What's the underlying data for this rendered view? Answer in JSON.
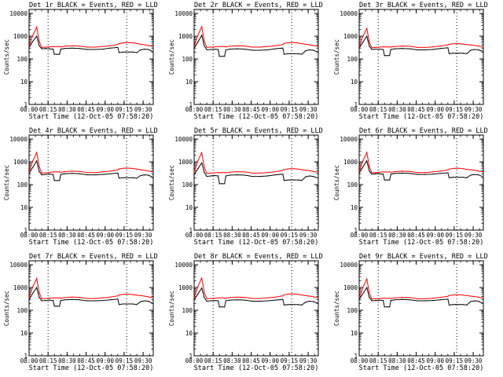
{
  "figure": {
    "xlabel": "Start Time (12-Oct-05 07:58:20)",
    "ylabel": "Counts/sec",
    "x_tick_labels": [
      "08:00",
      "08:15",
      "08:30",
      "08:45",
      "09:00",
      "09:15",
      "09:30"
    ],
    "y_tick_labels": [
      "1",
      "10",
      "100",
      "1000",
      "10000"
    ],
    "colors": {
      "events": "#000000",
      "lld": "#ff0000"
    }
  },
  "chart_data": [
    {
      "type": "line",
      "title": "Det 1r BLACK = Events, RED = LLD",
      "xlabel": "Start Time (12-Oct-05 07:58:20)",
      "ylabel": "Counts/sec",
      "xlim": [
        "08:00",
        "09:38"
      ],
      "ylim": [
        1,
        15000
      ],
      "y_scale": "log",
      "x": [
        "08:00",
        "08:03",
        "08:06",
        "08:08",
        "08:10",
        "08:13",
        "08:16",
        "08:19",
        "08:20",
        "08:22",
        "08:24",
        "08:25",
        "08:28",
        "08:34",
        "08:40",
        "08:46",
        "08:52",
        "08:58",
        "09:04",
        "09:10",
        "09:11",
        "09:14",
        "09:16",
        "09:19",
        "09:22",
        "09:25",
        "09:28",
        "09:31",
        "09:34",
        "09:37"
      ],
      "series": [
        {
          "name": "BLACK = Events",
          "values": [
            320,
            600,
            1000,
            380,
            280,
            290,
            280,
            270,
            160,
            160,
            160,
            270,
            290,
            300,
            290,
            260,
            260,
            270,
            300,
            320,
            190,
            200,
            200,
            200,
            200,
            190,
            250,
            270,
            260,
            220
          ]
        },
        {
          "name": "RED = LLD",
          "values": [
            360,
            1100,
            2500,
            600,
            320,
            330,
            340,
            350,
            350,
            350,
            350,
            340,
            360,
            380,
            370,
            330,
            330,
            350,
            380,
            430,
            470,
            500,
            520,
            530,
            510,
            480,
            440,
            420,
            390,
            360
          ]
        }
      ],
      "vlines": [
        "08:15",
        "09:17"
      ]
    },
    {
      "type": "line",
      "title": "Det 2r BLACK = Events, RED = LLD",
      "xlabel": "Start Time (12-Oct-05 07:58:20)",
      "ylabel": "Counts/sec",
      "xlim": [
        "08:00",
        "09:38"
      ],
      "ylim": [
        1,
        15000
      ],
      "y_scale": "log",
      "x": [
        "08:00",
        "08:03",
        "08:06",
        "08:08",
        "08:10",
        "08:13",
        "08:16",
        "08:19",
        "08:20",
        "08:22",
        "08:24",
        "08:25",
        "08:28",
        "08:34",
        "08:40",
        "08:46",
        "08:52",
        "08:58",
        "09:04",
        "09:10",
        "09:11",
        "09:14",
        "09:16",
        "09:19",
        "09:22",
        "09:25",
        "09:28",
        "09:31",
        "09:34",
        "09:37"
      ],
      "series": [
        {
          "name": "BLACK = Events",
          "values": [
            300,
            550,
            1100,
            380,
            250,
            260,
            270,
            260,
            130,
            130,
            130,
            250,
            270,
            280,
            270,
            240,
            240,
            250,
            280,
            300,
            160,
            170,
            170,
            170,
            170,
            160,
            230,
            250,
            240,
            210
          ]
        },
        {
          "name": "RED = LLD",
          "values": [
            360,
            1100,
            2600,
            620,
            320,
            330,
            340,
            350,
            350,
            350,
            350,
            340,
            360,
            380,
            370,
            330,
            330,
            350,
            380,
            430,
            480,
            510,
            520,
            520,
            500,
            470,
            440,
            420,
            390,
            360
          ]
        }
      ],
      "vlines": [
        "08:15",
        "09:17"
      ]
    },
    {
      "type": "line",
      "title": "Det 3r BLACK = Events, RED = LLD",
      "xlabel": "Start Time (12-Oct-05 07:58:20)",
      "ylabel": "Counts/sec",
      "xlim": [
        "08:00",
        "09:38"
      ],
      "ylim": [
        1,
        15000
      ],
      "y_scale": "log",
      "x": [
        "08:00",
        "08:03",
        "08:06",
        "08:08",
        "08:10",
        "08:13",
        "08:16",
        "08:19",
        "08:20",
        "08:22",
        "08:24",
        "08:25",
        "08:28",
        "08:34",
        "08:40",
        "08:46",
        "08:52",
        "08:58",
        "09:04",
        "09:10",
        "09:11",
        "09:14",
        "09:16",
        "09:19",
        "09:22",
        "09:25",
        "09:28",
        "09:31",
        "09:34",
        "09:37"
      ],
      "series": [
        {
          "name": "BLACK = Events",
          "values": [
            300,
            550,
            1000,
            370,
            260,
            270,
            270,
            260,
            140,
            140,
            140,
            260,
            280,
            290,
            280,
            250,
            250,
            260,
            290,
            310,
            170,
            180,
            180,
            180,
            180,
            170,
            240,
            260,
            250,
            220
          ]
        },
        {
          "name": "RED = LLD",
          "values": [
            340,
            1000,
            2200,
            560,
            310,
            320,
            330,
            340,
            340,
            340,
            340,
            330,
            350,
            370,
            360,
            320,
            320,
            340,
            370,
            410,
            440,
            460,
            470,
            470,
            450,
            430,
            410,
            390,
            370,
            340
          ]
        }
      ],
      "vlines": [
        "08:15",
        "09:17"
      ]
    },
    {
      "type": "line",
      "title": "Det 4r BLACK = Events, RED = LLD",
      "xlabel": "Start Time (12-Oct-05 07:58:20)",
      "ylabel": "Counts/sec",
      "xlim": [
        "08:00",
        "09:38"
      ],
      "ylim": [
        1,
        15000
      ],
      "y_scale": "log",
      "x": [
        "08:00",
        "08:03",
        "08:06",
        "08:08",
        "08:10",
        "08:13",
        "08:16",
        "08:19",
        "08:20",
        "08:22",
        "08:24",
        "08:25",
        "08:28",
        "08:34",
        "08:40",
        "08:46",
        "08:52",
        "08:58",
        "09:04",
        "09:10",
        "09:11",
        "09:14",
        "09:16",
        "09:19",
        "09:22",
        "09:25",
        "09:28",
        "09:31",
        "09:34",
        "09:37"
      ],
      "series": [
        {
          "name": "BLACK = Events",
          "values": [
            310,
            580,
            1100,
            380,
            270,
            280,
            290,
            280,
            150,
            150,
            150,
            280,
            300,
            310,
            300,
            270,
            270,
            280,
            300,
            320,
            190,
            200,
            200,
            200,
            200,
            190,
            250,
            270,
            260,
            220
          ]
        },
        {
          "name": "RED = LLD",
          "values": [
            360,
            1100,
            2600,
            620,
            320,
            330,
            340,
            360,
            360,
            360,
            360,
            350,
            370,
            390,
            380,
            340,
            340,
            360,
            390,
            440,
            490,
            520,
            530,
            530,
            510,
            480,
            450,
            430,
            400,
            370
          ]
        }
      ],
      "vlines": [
        "08:15",
        "09:17"
      ]
    },
    {
      "type": "line",
      "title": "Det 5r BLACK = Events, RED = LLD",
      "xlabel": "Start Time (12-Oct-05 07:58:20)",
      "ylabel": "Counts/sec",
      "xlim": [
        "08:00",
        "09:38"
      ],
      "ylim": [
        1,
        15000
      ],
      "y_scale": "log",
      "x": [
        "08:00",
        "08:03",
        "08:06",
        "08:08",
        "08:10",
        "08:13",
        "08:16",
        "08:19",
        "08:20",
        "08:22",
        "08:24",
        "08:25",
        "08:28",
        "08:34",
        "08:40",
        "08:46",
        "08:52",
        "08:58",
        "09:04",
        "09:10",
        "09:11",
        "09:14",
        "09:16",
        "09:19",
        "09:22",
        "09:25",
        "09:28",
        "09:31",
        "09:34",
        "09:37"
      ],
      "series": [
        {
          "name": "BLACK = Events",
          "values": [
            280,
            500,
            900,
            350,
            230,
            240,
            250,
            240,
            110,
            110,
            110,
            240,
            260,
            270,
            260,
            230,
            230,
            240,
            270,
            290,
            150,
            160,
            160,
            160,
            160,
            150,
            220,
            240,
            230,
            200
          ]
        },
        {
          "name": "RED = LLD",
          "values": [
            360,
            1100,
            2500,
            600,
            310,
            320,
            330,
            340,
            340,
            340,
            340,
            330,
            350,
            370,
            360,
            320,
            320,
            340,
            370,
            420,
            460,
            490,
            500,
            500,
            480,
            450,
            430,
            410,
            380,
            350
          ]
        }
      ],
      "vlines": [
        "08:15",
        "09:17"
      ]
    },
    {
      "type": "line",
      "title": "Det 6r BLACK = Events, RED = LLD",
      "xlabel": "Start Time (12-Oct-05 07:58:20)",
      "ylabel": "Counts/sec",
      "xlim": [
        "08:00",
        "09:38"
      ],
      "ylim": [
        1,
        15000
      ],
      "y_scale": "log",
      "x": [
        "08:00",
        "08:03",
        "08:06",
        "08:08",
        "08:10",
        "08:13",
        "08:16",
        "08:19",
        "08:20",
        "08:22",
        "08:24",
        "08:25",
        "08:28",
        "08:34",
        "08:40",
        "08:46",
        "08:52",
        "08:58",
        "09:04",
        "09:10",
        "09:11",
        "09:14",
        "09:16",
        "09:19",
        "09:22",
        "09:25",
        "09:28",
        "09:31",
        "09:34",
        "09:37"
      ],
      "series": [
        {
          "name": "BLACK = Events",
          "values": [
            320,
            600,
            1100,
            400,
            290,
            300,
            300,
            290,
            160,
            160,
            160,
            290,
            310,
            320,
            310,
            280,
            280,
            290,
            310,
            330,
            200,
            210,
            210,
            210,
            210,
            200,
            260,
            280,
            270,
            230
          ]
        },
        {
          "name": "RED = LLD",
          "values": [
            370,
            1100,
            2600,
            630,
            330,
            340,
            350,
            360,
            360,
            360,
            360,
            350,
            370,
            390,
            380,
            340,
            340,
            360,
            390,
            440,
            480,
            510,
            520,
            520,
            500,
            470,
            450,
            430,
            400,
            370
          ]
        }
      ],
      "vlines": [
        "08:15",
        "09:17"
      ]
    },
    {
      "type": "line",
      "title": "Det 7r BLACK = Events, RED = LLD",
      "xlabel": "Start Time (12-Oct-05 07:58:20)",
      "ylabel": "Counts/sec",
      "xlim": [
        "08:00",
        "09:38"
      ],
      "ylim": [
        1,
        15000
      ],
      "y_scale": "log",
      "x": [
        "08:00",
        "08:03",
        "08:06",
        "08:08",
        "08:10",
        "08:13",
        "08:16",
        "08:19",
        "08:20",
        "08:22",
        "08:24",
        "08:25",
        "08:28",
        "08:34",
        "08:40",
        "08:46",
        "08:52",
        "08:58",
        "09:04",
        "09:10",
        "09:11",
        "09:14",
        "09:16",
        "09:19",
        "09:22",
        "09:25",
        "09:28",
        "09:31",
        "09:34",
        "09:37"
      ],
      "series": [
        {
          "name": "BLACK = Events",
          "values": [
            300,
            560,
            1000,
            370,
            260,
            270,
            280,
            270,
            150,
            150,
            150,
            270,
            290,
            300,
            290,
            260,
            260,
            270,
            290,
            310,
            180,
            190,
            190,
            190,
            190,
            180,
            240,
            260,
            250,
            210
          ]
        },
        {
          "name": "RED = LLD",
          "values": [
            360,
            1100,
            2500,
            600,
            320,
            330,
            340,
            350,
            350,
            350,
            350,
            340,
            360,
            380,
            370,
            330,
            330,
            350,
            380,
            430,
            470,
            500,
            510,
            510,
            490,
            460,
            440,
            420,
            390,
            360
          ]
        }
      ],
      "vlines": [
        "08:15",
        "09:17"
      ]
    },
    {
      "type": "line",
      "title": "Det 8r BLACK = Events, RED = LLD",
      "xlabel": "Start Time (12-Oct-05 07:58:20)",
      "ylabel": "Counts/sec",
      "xlim": [
        "08:00",
        "09:38"
      ],
      "ylim": [
        1,
        15000
      ],
      "y_scale": "log",
      "x": [
        "08:00",
        "08:03",
        "08:06",
        "08:08",
        "08:10",
        "08:13",
        "08:16",
        "08:19",
        "08:20",
        "08:22",
        "08:24",
        "08:25",
        "08:28",
        "08:34",
        "08:40",
        "08:46",
        "08:52",
        "08:58",
        "09:04",
        "09:10",
        "09:11",
        "09:14",
        "09:16",
        "09:19",
        "09:22",
        "09:25",
        "09:28",
        "09:31",
        "09:34",
        "09:37"
      ],
      "series": [
        {
          "name": "BLACK = Events",
          "values": [
            290,
            520,
            950,
            360,
            250,
            260,
            270,
            260,
            140,
            140,
            140,
            260,
            280,
            290,
            280,
            250,
            250,
            260,
            280,
            300,
            170,
            180,
            180,
            180,
            180,
            170,
            230,
            250,
            240,
            210
          ]
        },
        {
          "name": "RED = LLD",
          "values": [
            360,
            1100,
            2600,
            610,
            320,
            330,
            340,
            350,
            350,
            350,
            350,
            340,
            360,
            380,
            370,
            330,
            330,
            350,
            380,
            430,
            480,
            510,
            520,
            520,
            500,
            470,
            440,
            420,
            390,
            360
          ]
        }
      ],
      "vlines": [
        "08:15",
        "09:17"
      ]
    },
    {
      "type": "line",
      "title": "Det 9r BLACK = Events, RED = LLD",
      "xlabel": "Start Time (12-Oct-05 07:58:20)",
      "ylabel": "Counts/sec",
      "xlim": [
        "08:00",
        "09:38"
      ],
      "ylim": [
        1,
        15000
      ],
      "y_scale": "log",
      "x": [
        "08:00",
        "08:03",
        "08:06",
        "08:08",
        "08:10",
        "08:13",
        "08:16",
        "08:19",
        "08:20",
        "08:22",
        "08:24",
        "08:25",
        "08:28",
        "08:34",
        "08:40",
        "08:46",
        "08:52",
        "08:58",
        "09:04",
        "09:10",
        "09:11",
        "09:14",
        "09:16",
        "09:19",
        "09:22",
        "09:25",
        "09:28",
        "09:31",
        "09:34",
        "09:37"
      ],
      "series": [
        {
          "name": "BLACK = Events",
          "values": [
            300,
            550,
            1000,
            370,
            260,
            270,
            280,
            270,
            140,
            140,
            140,
            270,
            290,
            300,
            290,
            260,
            260,
            270,
            290,
            310,
            170,
            180,
            180,
            180,
            180,
            170,
            240,
            260,
            250,
            210
          ]
        },
        {
          "name": "RED = LLD",
          "values": [
            350,
            1000,
            2400,
            580,
            310,
            320,
            330,
            340,
            340,
            340,
            340,
            330,
            350,
            370,
            360,
            320,
            320,
            340,
            370,
            410,
            450,
            470,
            480,
            480,
            460,
            440,
            420,
            400,
            380,
            350
          ]
        }
      ],
      "vlines": [
        "08:15",
        "09:17"
      ]
    }
  ]
}
